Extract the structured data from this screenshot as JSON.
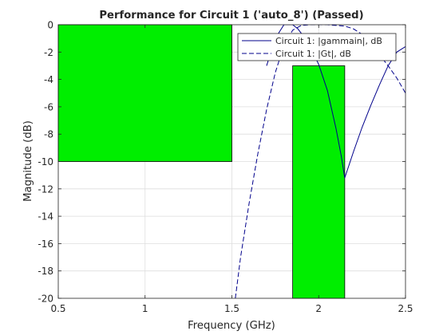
{
  "chart_data": {
    "type": "line",
    "title": "Performance for Circuit 1 ('auto_8')  (Passed)",
    "xlabel": "Frequency (GHz)",
    "ylabel": "Magnitude (dB)",
    "xlim": [
      0.5,
      2.5
    ],
    "ylim": [
      -20,
      0
    ],
    "xticks": [
      0.5,
      1,
      1.5,
      2,
      2.5
    ],
    "xtick_labels": [
      "0.5",
      "1",
      "1.5",
      "2",
      "2.5"
    ],
    "yticks": [
      0,
      -2,
      -4,
      -6,
      -8,
      -10,
      -12,
      -14,
      -16,
      -18,
      -20
    ],
    "ytick_labels": [
      "0",
      "-2",
      "-4",
      "-6",
      "-8",
      "-10",
      "-12",
      "-14",
      "-16",
      "-18",
      "-20"
    ],
    "grid": true,
    "legend_position": "top-right",
    "goal_regions": [
      {
        "x": [
          0.5,
          1.5
        ],
        "y": [
          -10,
          0
        ],
        "color": "#00ee00"
      },
      {
        "x": [
          1.85,
          2.15
        ],
        "y": [
          -20,
          -3
        ],
        "color": "#00ee00"
      }
    ],
    "series": [
      {
        "name": "Circuit 1: |gammain|, dB",
        "style": "solid",
        "color": "#00008b",
        "x": [
          1.7,
          1.75,
          1.8,
          1.83,
          1.85,
          1.88,
          1.91,
          1.95,
          2.0,
          2.05,
          2.1,
          2.13,
          2.15,
          2.2,
          2.25,
          2.3,
          2.35,
          2.4,
          2.45,
          2.5
        ],
        "y": [
          -3.0,
          -1.0,
          0.0,
          0.0,
          0.0,
          -0.3,
          -0.8,
          -1.6,
          -2.9,
          -4.8,
          -7.6,
          -9.6,
          -11.2,
          -9.3,
          -7.5,
          -5.9,
          -4.4,
          -3.0,
          -2.0,
          -1.6
        ]
      },
      {
        "name": "Circuit 1: |Gt|, dB",
        "style": "dashed",
        "color": "#00008b",
        "x": [
          1.52,
          1.55,
          1.6,
          1.65,
          1.7,
          1.75,
          1.8,
          1.85,
          1.9,
          1.95,
          2.0,
          2.05,
          2.1,
          2.15,
          2.2,
          2.25,
          2.3,
          2.35,
          2.4,
          2.45,
          2.5
        ],
        "y": [
          -20.0,
          -17.0,
          -13.0,
          -9.4,
          -6.2,
          -3.5,
          -1.5,
          -0.4,
          -0.05,
          0.0,
          0.0,
          0.0,
          -0.05,
          -0.1,
          -0.3,
          -0.7,
          -1.3,
          -2.2,
          -3.0,
          -3.9,
          -5.0
        ]
      }
    ]
  }
}
